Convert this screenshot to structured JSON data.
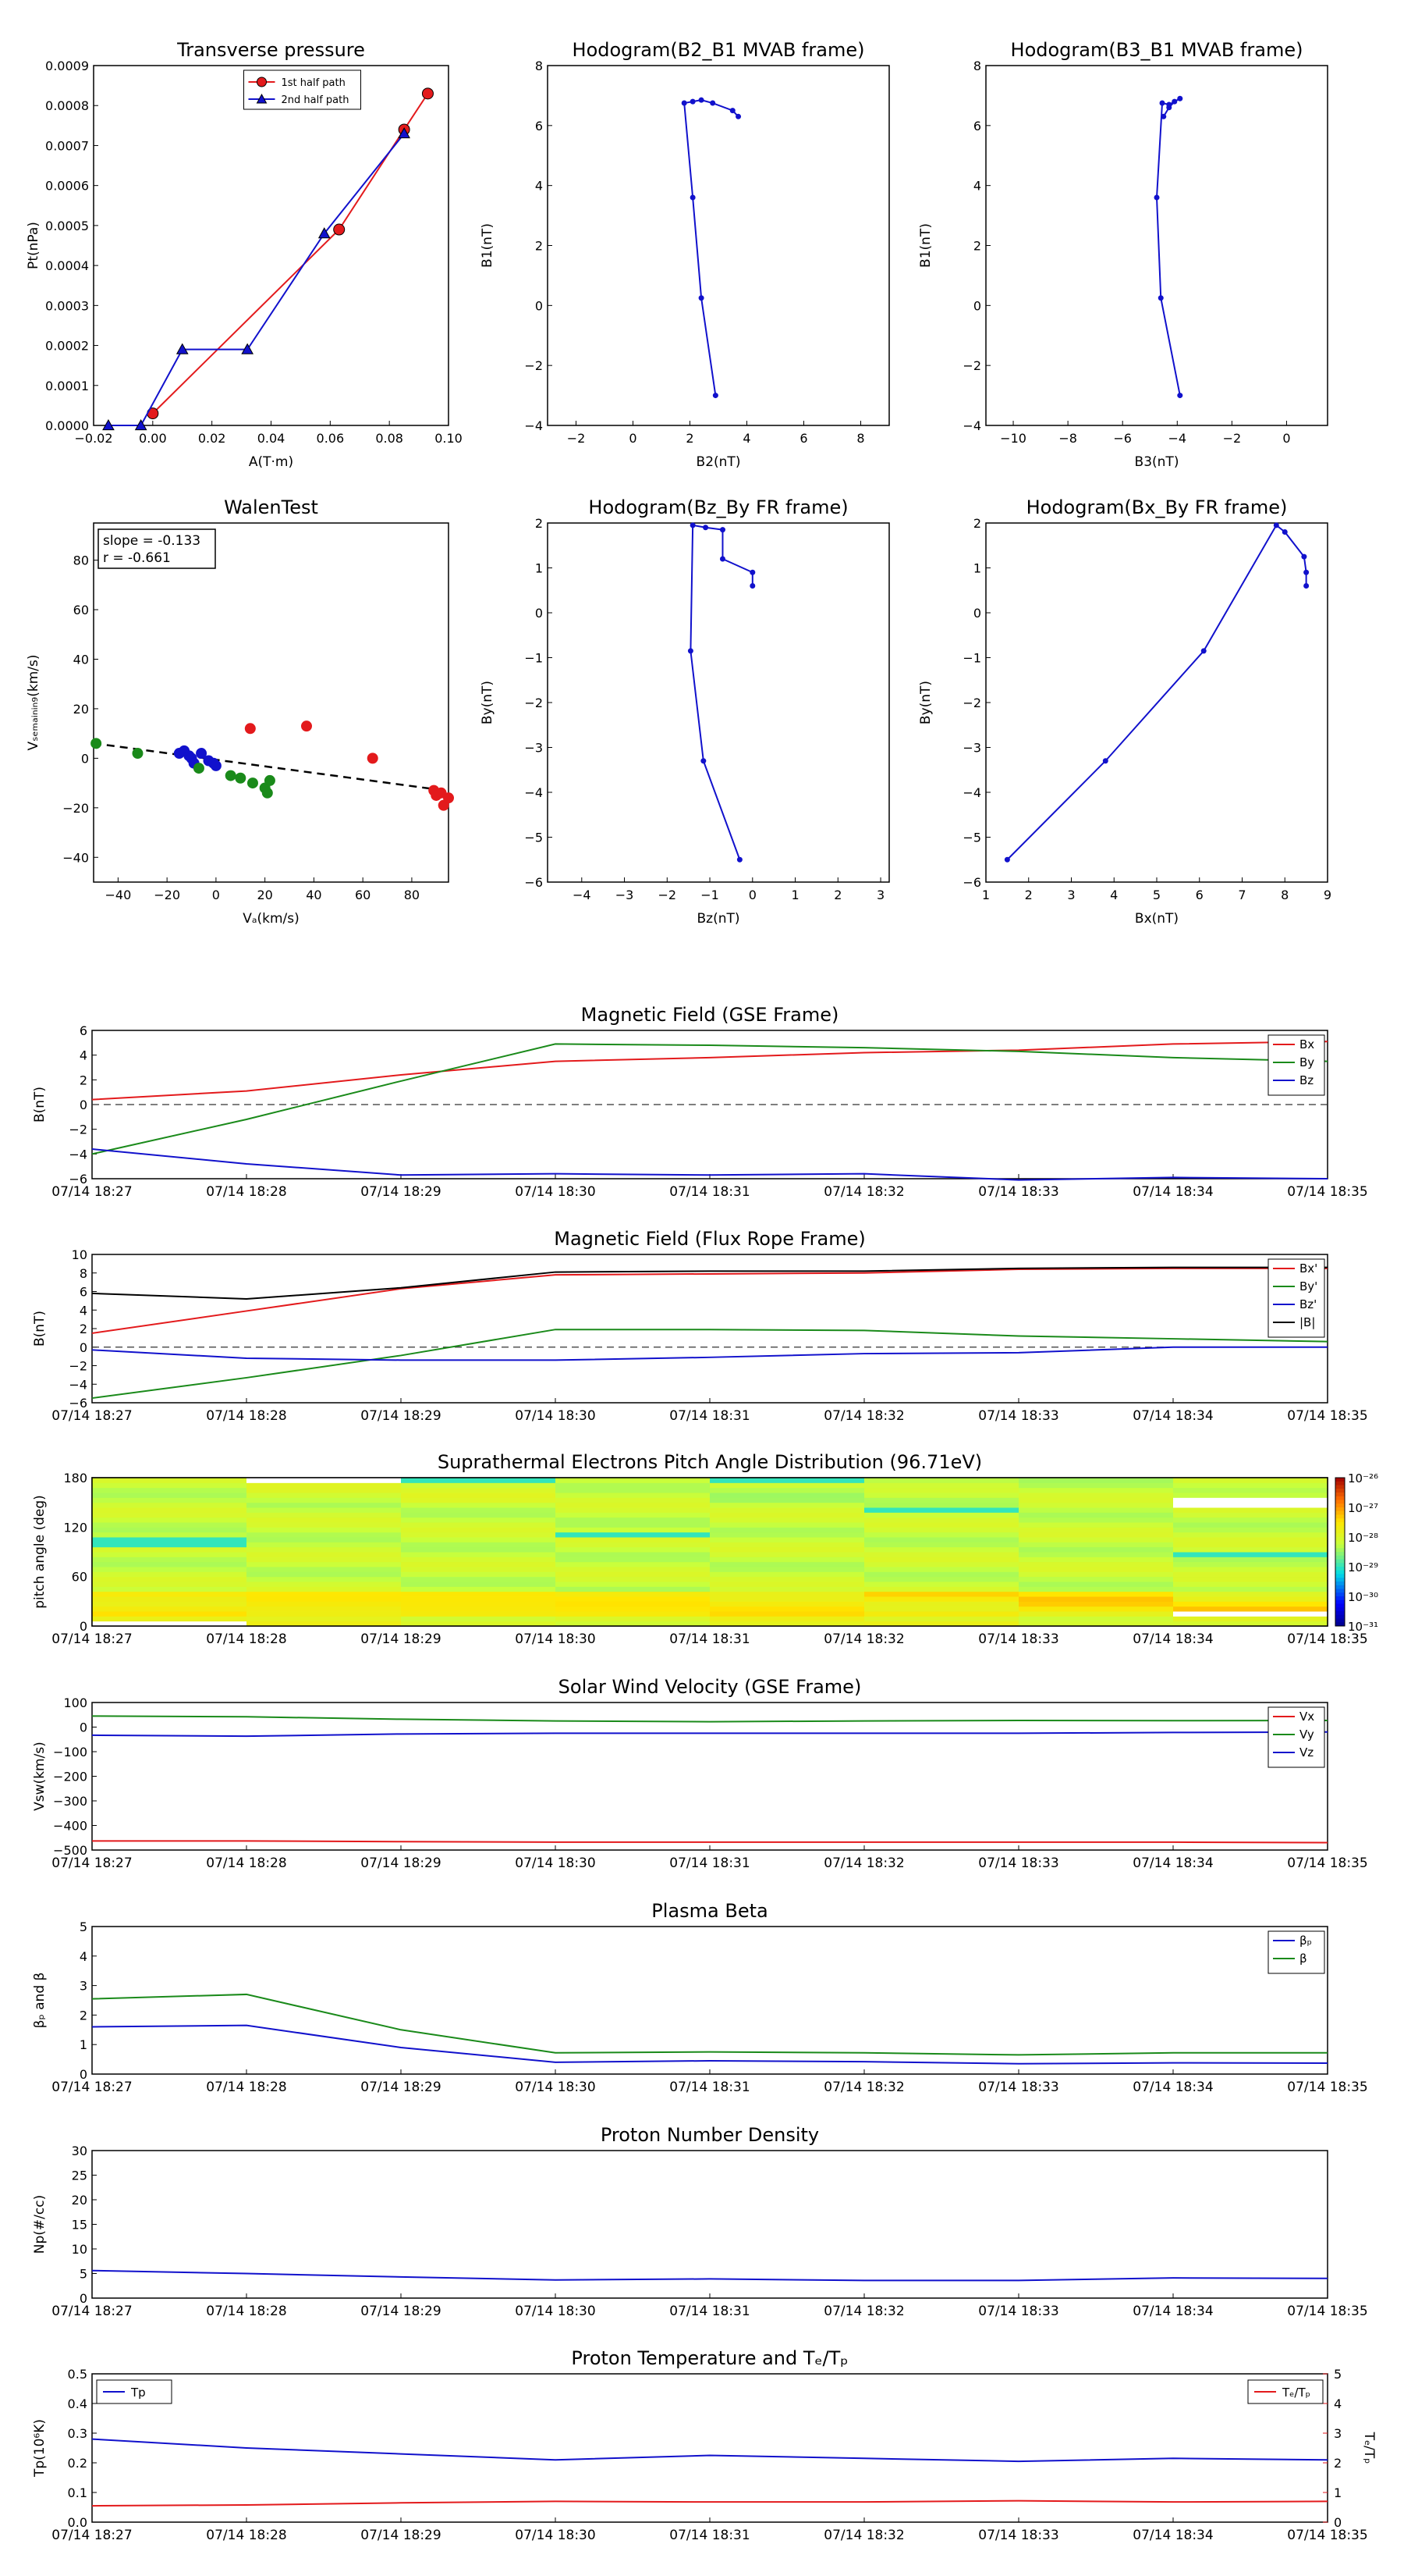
{
  "colors": {
    "red": "#e31a1c",
    "green": "#1a8a1a",
    "blue": "#1111cc",
    "black": "#000000"
  },
  "chart_data": [
    {
      "id": "transverse_pressure",
      "type": "line",
      "title": "Transverse pressure",
      "xlabel": "A(T·m)",
      "ylabel": "Pt(nPa)",
      "xlim": [
        -0.02,
        0.1
      ],
      "ylim": [
        0,
        0.0009
      ],
      "xticks": [
        "−0.02",
        "0.00",
        "0.02",
        "0.04",
        "0.06",
        "0.08",
        "0.10"
      ],
      "yticks": [
        "0.0000",
        "0.0001",
        "0.0002",
        "0.0003",
        "0.0004",
        "0.0005",
        "0.0006",
        "0.0007",
        "0.0008",
        "0.0009"
      ],
      "legend_position": "top-center",
      "series": [
        {
          "name": "1st half path",
          "color": "red",
          "marker": "circle",
          "x": [
            0.0,
            0.063,
            0.085,
            0.093
          ],
          "y": [
            3e-05,
            0.00049,
            0.00074,
            0.00083
          ]
        },
        {
          "name": "2nd half path",
          "color": "blue",
          "marker": "triangle",
          "x": [
            -0.015,
            -0.004,
            0.01,
            0.032,
            0.058,
            0.085
          ],
          "y": [
            0.0,
            0.0,
            0.00019,
            0.00019,
            0.00048,
            0.00073
          ]
        }
      ]
    },
    {
      "id": "hodo_b2_b1",
      "type": "line",
      "title": "Hodogram(B2_B1 MVAB frame)",
      "xlabel": "B2(nT)",
      "ylabel": "B1(nT)",
      "xlim": [
        -3,
        9
      ],
      "ylim": [
        -4,
        8
      ],
      "xticks": [
        "−2",
        "0",
        "2",
        "4",
        "6",
        "8"
      ],
      "yticks": [
        "−4",
        "−2",
        "0",
        "2",
        "4",
        "6",
        "8"
      ],
      "series": [
        {
          "color": "blue",
          "marker": "dot",
          "x": [
            3.7,
            3.5,
            2.8,
            2.4,
            2.1,
            1.8,
            2.1,
            2.4,
            2.9
          ],
          "y": [
            6.3,
            6.5,
            6.75,
            6.85,
            6.8,
            6.75,
            3.6,
            0.25,
            -3.0
          ]
        }
      ]
    },
    {
      "id": "hodo_b3_b1",
      "type": "line",
      "title": "Hodogram(B3_B1 MVAB frame)",
      "xlabel": "B3(nT)",
      "ylabel": "B1(nT)",
      "xlim": [
        -11,
        1.5
      ],
      "ylim": [
        -4,
        8
      ],
      "xticks": [
        "−10",
        "−8",
        "−6",
        "−4",
        "−2",
        "0"
      ],
      "yticks": [
        "−4",
        "−2",
        "0",
        "2",
        "4",
        "6",
        "8"
      ],
      "series": [
        {
          "color": "blue",
          "marker": "dot",
          "x": [
            -4.5,
            -4.3,
            -4.1,
            -3.9,
            -4.3,
            -4.55,
            -4.75,
            -4.6,
            -3.9
          ],
          "y": [
            6.3,
            6.6,
            6.8,
            6.9,
            6.7,
            6.75,
            3.6,
            0.25,
            -3.0
          ]
        }
      ]
    },
    {
      "id": "walen_test",
      "type": "scatter",
      "title": "WalenTest",
      "xlabel": "Vₐ(km/s)",
      "ylabel": "Vₛₑₘₐᵢₙᵢₙ₉(km/s)",
      "xlim": [
        -50,
        95
      ],
      "ylim": [
        -50,
        95
      ],
      "xticks": [
        "−40",
        "−20",
        "0",
        "20",
        "40",
        "60",
        "80"
      ],
      "yticks": [
        "−40",
        "−20",
        "0",
        "20",
        "40",
        "60",
        "80"
      ],
      "annotation": [
        "slope = -0.133",
        "r = -0.661"
      ],
      "fit_line": {
        "slope": -0.133,
        "intercept": -0.6
      },
      "series": [
        {
          "color": "blue",
          "x": [
            -15,
            -13,
            -11,
            -10,
            -9,
            -6,
            -3,
            -1,
            0
          ],
          "y": [
            2,
            3,
            1,
            0,
            -2,
            2,
            -1,
            -2,
            -3
          ]
        },
        {
          "color": "green",
          "x": [
            -49,
            -32,
            -7,
            6,
            10,
            15,
            20,
            21,
            22
          ],
          "y": [
            6,
            2,
            -4,
            -7,
            -8,
            -10,
            -12,
            -14,
            -9
          ]
        },
        {
          "color": "red",
          "x": [
            14,
            37,
            64,
            89,
            90,
            92,
            93,
            95
          ],
          "y": [
            12,
            13,
            0,
            -13,
            -15,
            -14,
            -19,
            -16
          ]
        }
      ]
    },
    {
      "id": "hodo_bz_by",
      "type": "line",
      "title": "Hodogram(Bz_By FR frame)",
      "xlabel": "Bz(nT)",
      "ylabel": "By(nT)",
      "xlim": [
        -4.8,
        3.2
      ],
      "ylim": [
        -6,
        2
      ],
      "xticks": [
        "−4",
        "−3",
        "−2",
        "−1",
        "0",
        "1",
        "2",
        "3"
      ],
      "yticks": [
        "−6",
        "−5",
        "−4",
        "−3",
        "−2",
        "−1",
        "0",
        "1",
        "2"
      ],
      "series": [
        {
          "color": "blue",
          "marker": "dot",
          "x": [
            0.0,
            0.0,
            -0.7,
            -0.7,
            -1.1,
            -1.4,
            -1.45,
            -1.15,
            -0.3
          ],
          "y": [
            0.6,
            0.9,
            1.2,
            1.85,
            1.9,
            1.95,
            -0.85,
            -3.3,
            -5.5
          ]
        }
      ]
    },
    {
      "id": "hodo_bx_by",
      "type": "line",
      "title": "Hodogram(Bx_By FR frame)",
      "xlabel": "Bx(nT)",
      "ylabel": "By(nT)",
      "xlim": [
        1,
        9
      ],
      "ylim": [
        -6,
        2
      ],
      "xticks": [
        "1",
        "2",
        "3",
        "4",
        "5",
        "6",
        "7",
        "8",
        "9"
      ],
      "yticks": [
        "−6",
        "−5",
        "−4",
        "−3",
        "−2",
        "−1",
        "0",
        "1",
        "2"
      ],
      "series": [
        {
          "color": "blue",
          "marker": "dot",
          "x": [
            8.5,
            8.5,
            8.45,
            8.0,
            7.8,
            6.1,
            3.8,
            1.5
          ],
          "y": [
            0.6,
            0.9,
            1.25,
            1.8,
            1.95,
            -0.85,
            -3.3,
            -5.5
          ]
        }
      ]
    },
    {
      "id": "mag_gse",
      "type": "line",
      "title": "Magnetic Field (GSE Frame)",
      "ylabel": "B(nT)",
      "ylim": [
        -6,
        6
      ],
      "yticks": [
        "−6",
        "−4",
        "−2",
        "0",
        "2",
        "4",
        "6"
      ],
      "categories": [
        "07/14 18:27",
        "07/14 18:28",
        "07/14 18:29",
        "07/14 18:30",
        "07/14 18:31",
        "07/14 18:32",
        "07/14 18:33",
        "07/14 18:34",
        "07/14 18:35"
      ],
      "zero_line": true,
      "legend_position": "top-right",
      "series": [
        {
          "name": "Bx",
          "color": "red",
          "values": [
            0.4,
            1.1,
            2.4,
            3.5,
            3.8,
            4.2,
            4.4,
            4.9,
            5.1
          ]
        },
        {
          "name": "By",
          "color": "green",
          "values": [
            -4.0,
            -1.2,
            1.9,
            4.9,
            4.8,
            4.6,
            4.3,
            3.8,
            3.5
          ]
        },
        {
          "name": "Bz",
          "color": "blue",
          "values": [
            -3.6,
            -4.8,
            -5.7,
            -5.6,
            -5.7,
            -5.6,
            -6.1,
            -5.9,
            -6.0
          ]
        }
      ]
    },
    {
      "id": "mag_fr",
      "type": "line",
      "title": "Magnetic Field (Flux Rope Frame)",
      "ylabel": "B(nT)",
      "ylim": [
        -6,
        10
      ],
      "yticks": [
        "−6",
        "−4",
        "−2",
        "0",
        "2",
        "4",
        "6",
        "8",
        "10"
      ],
      "categories": [
        "07/14 18:27",
        "07/14 18:28",
        "07/14 18:29",
        "07/14 18:30",
        "07/14 18:31",
        "07/14 18:32",
        "07/14 18:33",
        "07/14 18:34",
        "07/14 18:35"
      ],
      "zero_line": true,
      "legend_position": "top-right",
      "series": [
        {
          "name": "Bx'",
          "color": "red",
          "values": [
            1.5,
            3.9,
            6.3,
            7.8,
            7.9,
            8.0,
            8.4,
            8.5,
            8.5
          ]
        },
        {
          "name": "By'",
          "color": "green",
          "values": [
            -5.5,
            -3.3,
            -0.9,
            1.9,
            1.9,
            1.8,
            1.2,
            0.9,
            0.6
          ]
        },
        {
          "name": "Bz'",
          "color": "blue",
          "values": [
            -0.3,
            -1.2,
            -1.4,
            -1.4,
            -1.1,
            -0.7,
            -0.6,
            0.0,
            0.0
          ]
        },
        {
          "name": "|B|",
          "color": "black",
          "values": [
            5.8,
            5.2,
            6.4,
            8.1,
            8.2,
            8.2,
            8.5,
            8.6,
            8.6
          ]
        }
      ]
    },
    {
      "id": "pad",
      "type": "heatmap",
      "title": "Suprathermal Electrons Pitch Angle Distribution (96.71eV)",
      "ylabel": "pitch angle (deg)",
      "ylim": [
        0,
        180
      ],
      "yticks": [
        "0",
        "60",
        "120",
        "180"
      ],
      "categories": [
        "07/14 18:27",
        "07/14 18:28",
        "07/14 18:29",
        "07/14 18:30",
        "07/14 18:31",
        "07/14 18:32",
        "07/14 18:33",
        "07/14 18:34",
        "07/14 18:35"
      ],
      "colorbar": {
        "ticks": [
          "10⁻²⁶",
          "10⁻²⁷",
          "10⁻²⁸",
          "10⁻²⁹",
          "10⁻³⁰",
          "10⁻³¹"
        ],
        "range": [
          -31,
          -26
        ]
      }
    },
    {
      "id": "vsw",
      "type": "line",
      "title": "Solar Wind Velocity (GSE Frame)",
      "ylabel": "Vsw(km/s)",
      "ylim": [
        -500,
        100
      ],
      "yticks": [
        "−500",
        "−400",
        "−300",
        "−200",
        "−100",
        "0",
        "100"
      ],
      "categories": [
        "07/14 18:27",
        "07/14 18:28",
        "07/14 18:29",
        "07/14 18:30",
        "07/14 18:31",
        "07/14 18:32",
        "07/14 18:33",
        "07/14 18:34",
        "07/14 18:35"
      ],
      "legend_position": "top-right",
      "series": [
        {
          "name": "Vx",
          "color": "red",
          "values": [
            -463,
            -463,
            -466,
            -468,
            -468,
            -468,
            -468,
            -468,
            -470
          ]
        },
        {
          "name": "Vy",
          "color": "green",
          "values": [
            45,
            42,
            32,
            25,
            22,
            25,
            27,
            26,
            27
          ]
        },
        {
          "name": "Vz",
          "color": "blue",
          "values": [
            -33,
            -37,
            -28,
            -25,
            -25,
            -25,
            -25,
            -22,
            -20
          ]
        }
      ]
    },
    {
      "id": "beta",
      "type": "line",
      "title": "Plasma Beta",
      "ylabel": "βₚ and β",
      "ylim": [
        0,
        5
      ],
      "yticks": [
        "0",
        "1",
        "2",
        "3",
        "4",
        "5"
      ],
      "categories": [
        "07/14 18:27",
        "07/14 18:28",
        "07/14 18:29",
        "07/14 18:30",
        "07/14 18:31",
        "07/14 18:32",
        "07/14 18:33",
        "07/14 18:34",
        "07/14 18:35"
      ],
      "legend_position": "top-right",
      "series": [
        {
          "name": "βₚ",
          "color": "blue",
          "values": [
            1.6,
            1.65,
            0.9,
            0.4,
            0.45,
            0.42,
            0.35,
            0.38,
            0.37
          ]
        },
        {
          "name": "β",
          "color": "green",
          "values": [
            2.55,
            2.7,
            1.5,
            0.72,
            0.75,
            0.72,
            0.65,
            0.72,
            0.72
          ]
        }
      ]
    },
    {
      "id": "density",
      "type": "line",
      "title": "Proton Number Density",
      "ylabel": "Np(#/cc)",
      "ylim": [
        0,
        30
      ],
      "yticks": [
        "0",
        "5",
        "10",
        "15",
        "20",
        "25",
        "30"
      ],
      "categories": [
        "07/14 18:27",
        "07/14 18:28",
        "07/14 18:29",
        "07/14 18:30",
        "07/14 18:31",
        "07/14 18:32",
        "07/14 18:33",
        "07/14 18:34",
        "07/14 18:35"
      ],
      "series": [
        {
          "color": "blue",
          "values": [
            5.6,
            5.0,
            4.3,
            3.7,
            3.9,
            3.6,
            3.6,
            4.1,
            4.0
          ]
        }
      ]
    },
    {
      "id": "temperature",
      "type": "line",
      "title": "Proton Temperature and Tₑ/Tₚ",
      "ylabel": "Tp(10⁶K)",
      "y2label": "Tₑ/Tₚ",
      "ylim": [
        0,
        0.5
      ],
      "yticks": [
        "0.0",
        "0.1",
        "0.2",
        "0.3",
        "0.4",
        "0.5"
      ],
      "y2lim": [
        0,
        5
      ],
      "y2ticks": [
        "0",
        "1",
        "2",
        "3",
        "4",
        "5"
      ],
      "categories": [
        "07/14 18:27",
        "07/14 18:28",
        "07/14 18:29",
        "07/14 18:30",
        "07/14 18:31",
        "07/14 18:32",
        "07/14 18:33",
        "07/14 18:34",
        "07/14 18:35"
      ],
      "series": [
        {
          "name": "Tp",
          "color": "blue",
          "axis": "left",
          "legend": "top-left",
          "values": [
            0.28,
            0.25,
            0.23,
            0.21,
            0.225,
            0.215,
            0.205,
            0.215,
            0.21
          ]
        },
        {
          "name": "Tₑ/Tₚ",
          "color": "red",
          "axis": "right",
          "legend": "top-right",
          "values": [
            0.55,
            0.58,
            0.65,
            0.7,
            0.68,
            0.68,
            0.72,
            0.68,
            0.7
          ]
        }
      ]
    }
  ]
}
